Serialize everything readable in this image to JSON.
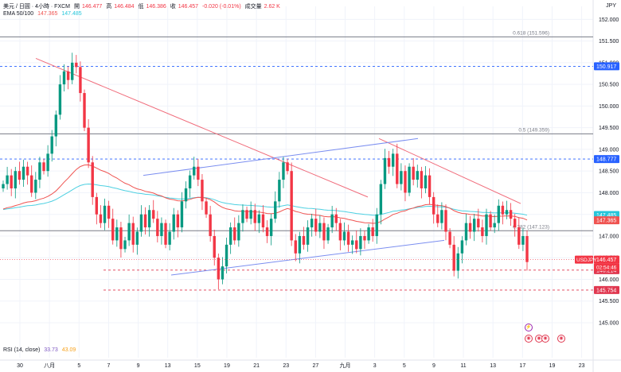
{
  "header": {
    "symbol": "美元 / 日圓 · 4小時 · FXCM",
    "open_label": "開",
    "open": "146.477",
    "high_label": "高",
    "high": "146.484",
    "low_label": "低",
    "low": "146.386",
    "close_label": "收",
    "close": "146.457",
    "change": "-0.020 (-0.01%)",
    "volume_label": "成交量",
    "volume": "2.62 K",
    "ema_label": "EMA 50/100",
    "ema50": "147.365",
    "ema100": "147.485"
  },
  "currency": "JPY",
  "rsi": {
    "label": "RSI (14, close)",
    "v1": "33.73",
    "v2": "43.09"
  },
  "colors": {
    "up": "#089981",
    "down": "#f23645",
    "ema50": "#ef5350",
    "ema100": "#4dd0e1",
    "trend_red": "#f06b7a",
    "channel_blue": "#7b8ef0",
    "blue_level": "#2962ff",
    "red_level": "#e0374f"
  },
  "chart_data": {
    "type": "candlestick",
    "y_axis_ticks": [
      145.0,
      145.5,
      146.0,
      146.5,
      147.0,
      147.5,
      148.0,
      148.5,
      149.0,
      149.5,
      150.0,
      150.5,
      151.0,
      151.5,
      152.0
    ],
    "ylim": [
      144.56,
      152.3
    ],
    "x_axis_ticks": [
      "30",
      "八月",
      "5",
      "7",
      "9",
      "13",
      "15",
      "19",
      "21",
      "23",
      "27",
      "九月",
      "3",
      "5",
      "9",
      "11",
      "13",
      "17",
      "19",
      "23"
    ],
    "levels": [
      {
        "label": "0.618 (151.596)",
        "value": 151.596,
        "style": "solid",
        "color": "#787b86"
      },
      {
        "label": "150.917",
        "value": 150.917,
        "style": "dashed",
        "color": "#2962ff"
      },
      {
        "label": "0.5 (149.359)",
        "value": 149.359,
        "style": "solid",
        "color": "#787b86"
      },
      {
        "label": "148.777",
        "value": 148.777,
        "style": "dashed",
        "color": "#2962ff"
      },
      {
        "label": "0.382 (147.123)",
        "value": 147.123,
        "style": "solid",
        "color": "#787b86"
      },
      {
        "label": "146.214",
        "value": 146.214,
        "style": "dashed",
        "color": "#e0374f"
      },
      {
        "label": "145.754",
        "value": 145.754,
        "style": "dashed",
        "color": "#e0374f"
      }
    ],
    "price_tags": [
      {
        "label": "150.917",
        "value": 150.917,
        "color": "#2962ff"
      },
      {
        "label": "148.777",
        "value": 148.777,
        "color": "#2962ff"
      },
      {
        "label": "147.485",
        "value": 147.485,
        "color": "#26c6da"
      },
      {
        "label": "147.365",
        "value": 147.365,
        "color": "#ef5350"
      },
      {
        "label": "146.457",
        "value": 146.457,
        "color": "#f23645"
      },
      {
        "label": "146.214",
        "value": 146.214,
        "color": "#e0374f"
      },
      {
        "label": "145.754",
        "value": 145.754,
        "color": "#e0374f"
      }
    ],
    "price_tag_text": {
      "symbol": "USDJPY",
      "countdown": "02:54:46"
    },
    "closes": [
      148.2,
      148.4,
      148.1,
      148.5,
      148.3,
      148.6,
      148.4,
      148.0,
      148.3,
      148.7,
      148.5,
      148.9,
      149.3,
      149.8,
      150.5,
      150.8,
      150.6,
      151.0,
      150.9,
      150.3,
      149.5,
      148.7,
      147.9,
      147.5,
      147.3,
      147.7,
      147.4,
      146.9,
      147.2,
      146.7,
      146.9,
      147.3,
      146.8,
      147.1,
      147.5,
      147.2,
      147.6,
      147.4,
      147.0,
      147.3,
      146.8,
      147.1,
      147.5,
      147.2,
      147.8,
      148.1,
      148.4,
      148.6,
      148.3,
      147.8,
      147.5,
      147.0,
      146.5,
      146.0,
      146.3,
      146.8,
      147.2,
      146.9,
      147.3,
      147.6,
      147.4,
      147.6,
      147.3,
      147.5,
      147.2,
      147.0,
      147.4,
      147.8,
      148.3,
      148.7,
      148.5,
      146.9,
      146.6,
      147.0,
      146.8,
      147.2,
      147.4,
      147.1,
      147.3,
      146.9,
      147.2,
      147.5,
      147.3,
      146.9,
      147.1,
      146.8,
      146.9,
      146.7,
      147.0,
      146.9,
      147.2,
      147.0,
      147.5,
      148.2,
      148.8,
      148.6,
      148.9,
      148.2,
      148.5,
      148.0,
      148.6,
      148.3,
      148.5,
      148.1,
      148.4,
      147.9,
      147.5,
      147.3,
      147.6,
      147.1,
      146.8,
      146.2,
      146.6,
      146.9,
      147.3,
      147.1,
      147.4,
      147.2,
      147.0,
      147.5,
      147.2,
      147.3,
      147.7,
      147.5,
      147.6,
      147.4,
      147.2,
      146.8,
      147.0,
      146.4
    ]
  },
  "events": [
    "⚡",
    "◉",
    "◉",
    "◉",
    "◉"
  ]
}
